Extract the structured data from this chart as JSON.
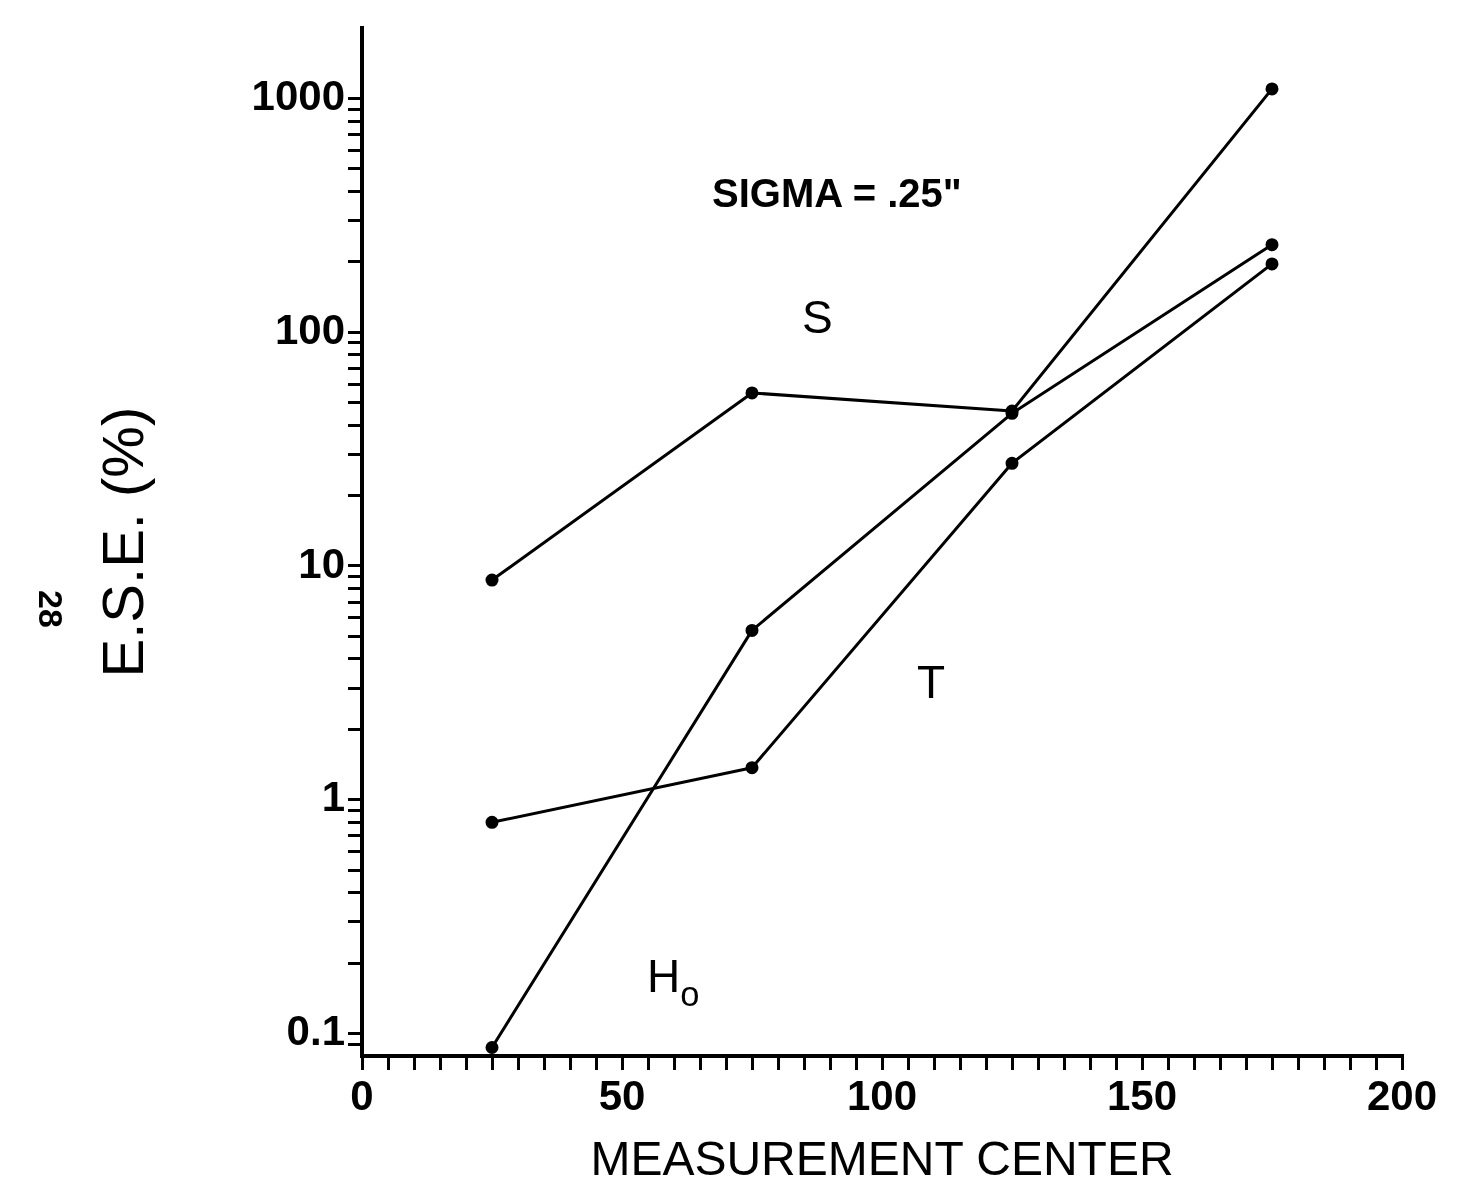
{
  "chart_data": {
    "type": "line",
    "xlabel": "MEASUREMENT CENTER",
    "ylabel": "E.S.E. (%)",
    "x": [
      25,
      75,
      125,
      175
    ],
    "series": [
      {
        "name": "S",
        "color": "#000000",
        "values": [
          8.7,
          55,
          46,
          1100
        ]
      },
      {
        "name": "T",
        "color": "#000000",
        "values": [
          0.8,
          1.37,
          27.5,
          196
        ]
      },
      {
        "name": "H$_{o}$",
        "color": "#000000",
        "values": [
          0.087,
          5.3,
          45,
          237
        ]
      }
    ],
    "log": "y",
    "xlim": [
      0,
      200
    ],
    "ylim": [
      0.08,
      2000
    ],
    "xticks": [
      0,
      {
        "value": 5,
        "label": null
      },
      {
        "value": 10,
        "label": null
      },
      {
        "value": 15,
        "label": null
      },
      {
        "value": 20,
        "label": null
      },
      {
        "value": 25,
        "label": null
      },
      {
        "value": 30,
        "label": null
      },
      {
        "value": 35,
        "label": null
      },
      {
        "value": 40,
        "label": null
      },
      {
        "value": 45,
        "label": null
      },
      50,
      {
        "value": 55,
        "label": null
      },
      {
        "value": 60,
        "label": null
      },
      {
        "value": 65,
        "label": null
      },
      {
        "value": 70,
        "label": null
      },
      {
        "value": 75,
        "label": null
      },
      {
        "value": 80,
        "label": null
      },
      {
        "value": 85,
        "label": null
      },
      {
        "value": 90,
        "label": null
      },
      {
        "value": 95,
        "label": null
      },
      100,
      {
        "value": 105,
        "label": null
      },
      {
        "value": 110,
        "label": null
      },
      {
        "value": 115,
        "label": null
      },
      {
        "value": 120,
        "label": null
      },
      {
        "value": 125,
        "label": null
      },
      {
        "value": 130,
        "label": null
      },
      {
        "value": 135,
        "label": null
      },
      {
        "value": 140,
        "label": null
      },
      {
        "value": 145,
        "label": null
      },
      150,
      {
        "value": 155,
        "label": null
      },
      {
        "value": 160,
        "label": null
      },
      {
        "value": 165,
        "label": null
      },
      {
        "value": 170,
        "label": null
      },
      {
        "value": 175,
        "label": null
      },
      {
        "value": 180,
        "label": null
      },
      {
        "value": 185,
        "label": null
      },
      {
        "value": 190,
        "label": null
      },
      {
        "value": 195,
        "label": null
      },
      200
    ],
    "yticks": [
      {
        "value": 0.09,
        "label": null
      },
      {
        "value": 0.1,
        "label": "0.1"
      },
      {
        "value": 0.2,
        "label": null
      },
      {
        "value": 0.3,
        "label": null
      },
      {
        "value": 0.4,
        "label": null
      },
      {
        "value": 0.5,
        "label": null
      },
      {
        "value": 0.6,
        "label": null
      },
      {
        "value": 0.7,
        "label": null
      },
      {
        "value": 0.8,
        "label": null
      },
      {
        "value": 0.9,
        "label": null
      },
      1,
      {
        "value": 2,
        "label": null
      },
      {
        "value": 3,
        "label": null
      },
      {
        "value": 4,
        "label": null
      },
      {
        "value": 5,
        "label": null
      },
      {
        "value": 6,
        "label": null
      },
      {
        "value": 7,
        "label": null
      },
      {
        "value": 8,
        "label": null
      },
      {
        "value": 9,
        "label": null
      },
      10,
      {
        "value": 20,
        "label": null
      },
      {
        "value": 30,
        "label": null
      },
      {
        "value": 40,
        "label": null
      },
      {
        "value": 50,
        "label": null
      },
      {
        "value": 60,
        "label": null
      },
      {
        "value": 70,
        "label": null
      },
      {
        "value": 80,
        "label": null
      },
      {
        "value": 90,
        "label": null
      },
      100,
      {
        "value": 200,
        "label": null
      },
      {
        "value": 300,
        "label": null
      },
      {
        "value": 400,
        "label": null
      },
      {
        "value": 500,
        "label": null
      },
      {
        "value": 600,
        "label": null
      },
      {
        "value": 700,
        "label": null
      },
      {
        "value": 800,
        "label": null
      },
      {
        "value": 900,
        "label": null
      },
      1000
    ],
    "grid": false,
    "legend": false,
    "marker": "circle",
    "line_style": "solid",
    "annotations": [
      "SIGMA = .25\"",
      "28"
    ]
  }
}
